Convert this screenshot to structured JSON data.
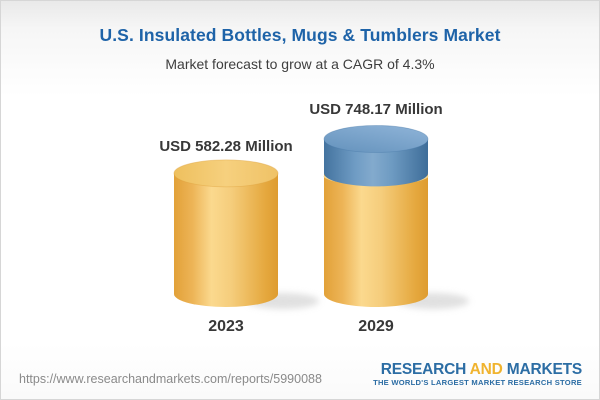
{
  "header": {
    "title": "U.S. Insulated Bottles, Mugs & Tumblers Market",
    "subtitle": "Market forecast to grow at a CAGR of 4.3%"
  },
  "chart_data": {
    "type": "bar",
    "variant": "3d-cylinder",
    "categories": [
      "2023",
      "2029"
    ],
    "values": [
      582.28,
      748.17
    ],
    "value_labels": [
      "USD 582.28 Million",
      "USD 748.17 Million"
    ],
    "unit": "USD Million",
    "cagr": "4.3%",
    "title": "U.S. Insulated Bottles, Mugs & Tumblers Market",
    "subtitle": "Market forecast to grow at a CAGR of 4.3%",
    "ylim": [
      0,
      748.17
    ],
    "grid": false,
    "legend": false,
    "colors": {
      "base_segment": "#F2C766",
      "base_segment_shade": "#E2A138",
      "base_segment_highlight": "#FBD98E",
      "growth_segment": "#74A0C8",
      "growth_segment_shade": "#44739F",
      "growth_segment_highlight": "#83AACD",
      "label_text": "#383838"
    },
    "notes": "2029 cylinder: gold portion equals 2023 value, blue top portion is forecast growth"
  },
  "footer": {
    "url": "https://www.researchandmarkets.com/reports/5990088",
    "logo": {
      "research": "RESEARCH",
      "and": "AND",
      "markets": "MARKETS",
      "tagline": "THE WORLD'S LARGEST MARKET RESEARCH STORE"
    }
  }
}
